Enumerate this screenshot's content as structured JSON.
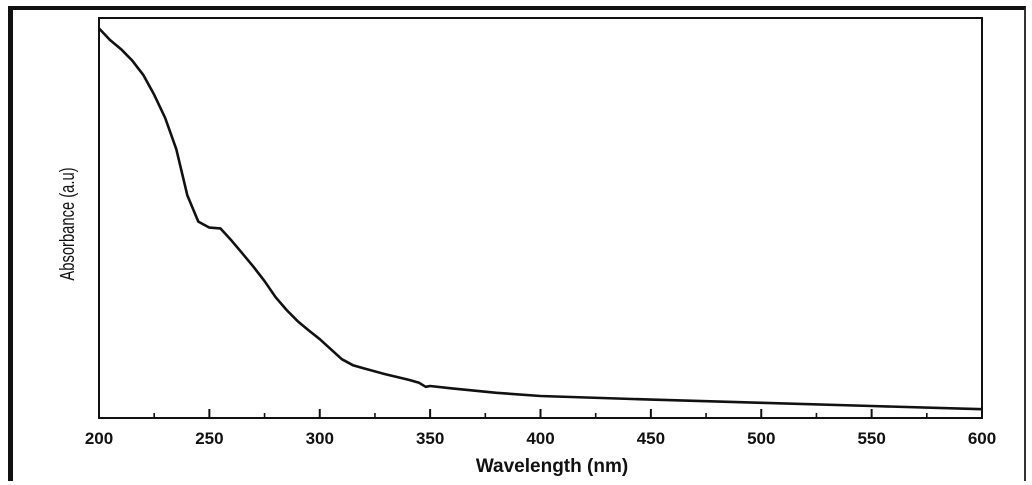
{
  "chart_data": {
    "type": "line",
    "title": "",
    "xlabel": "Wavelength (nm)",
    "ylabel": "Absorbance (a.u)",
    "xlim": [
      200,
      600
    ],
    "ylim": [
      0,
      1
    ],
    "x_ticks": [
      200,
      250,
      300,
      350,
      400,
      450,
      500,
      550,
      600
    ],
    "y_ticks": [],
    "grid": false,
    "legend": "none",
    "series": [
      {
        "color": "#111111",
        "x": [
          200,
          205,
          210,
          215,
          220,
          225,
          230,
          235,
          240,
          245,
          250,
          255,
          260,
          265,
          270,
          275,
          280,
          285,
          290,
          295,
          300,
          305,
          310,
          315,
          320,
          330,
          340,
          345,
          348,
          350,
          360,
          380,
          400,
          450,
          500,
          550,
          600
        ],
        "y": [
          0.974,
          0.945,
          0.922,
          0.894,
          0.858,
          0.808,
          0.75,
          0.672,
          0.557,
          0.491,
          0.476,
          0.474,
          0.444,
          0.411,
          0.378,
          0.342,
          0.302,
          0.27,
          0.242,
          0.219,
          0.197,
          0.172,
          0.147,
          0.132,
          0.124,
          0.109,
          0.096,
          0.088,
          0.078,
          0.08,
          0.074,
          0.063,
          0.055,
          0.046,
          0.038,
          0.03,
          0.022
        ]
      }
    ]
  }
}
